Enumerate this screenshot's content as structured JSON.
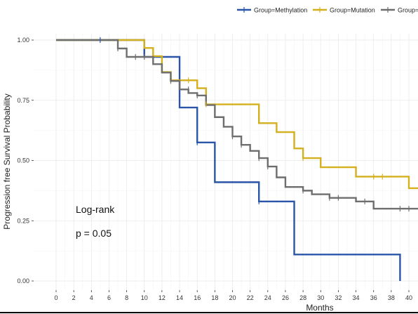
{
  "chart_data": {
    "type": "line",
    "subtype": "kaplan-meier-step",
    "xlabel": "Months",
    "ylabel": "Progression free Survival Probability",
    "x_ticks": [
      0,
      2,
      4,
      6,
      8,
      10,
      12,
      14,
      16,
      18,
      20,
      22,
      24,
      26,
      28,
      30,
      32,
      34,
      36,
      38,
      40
    ],
    "y_ticks": [
      "0.00",
      "0.25",
      "0.50",
      "0.75",
      "1.00"
    ],
    "y_tick_values": [
      0,
      0.25,
      0.5,
      0.75,
      1.0
    ],
    "xlim": [
      -6,
      41.5
    ],
    "ylim": [
      -0.02,
      1.05
    ],
    "grid": true,
    "legend_position": "top",
    "annotations": {
      "test": "Log-rank",
      "pvalue": "p = 0.05"
    },
    "series": [
      {
        "name": "Group=Methylation",
        "legend_label": "Group=Methylation",
        "color": "#2A55A8",
        "steps": [
          [
            0,
            1.0
          ],
          [
            10,
            0.93
          ],
          [
            14,
            0.72
          ],
          [
            16,
            0.575
          ],
          [
            18,
            0.41
          ],
          [
            23,
            0.33
          ],
          [
            27,
            0.11
          ],
          [
            39,
            0.0
          ]
        ],
        "end_x": 39,
        "censors": [
          [
            5,
            1.0
          ],
          [
            16,
            0.575
          ],
          [
            23,
            0.33
          ]
        ]
      },
      {
        "name": "Group=Mutation",
        "legend_label": "Group=Mutation",
        "color": "#D4AF1E",
        "steps": [
          [
            0,
            1.0
          ],
          [
            10,
            0.967
          ],
          [
            11,
            0.933
          ],
          [
            12,
            0.867
          ],
          [
            13,
            0.833
          ],
          [
            16,
            0.8
          ],
          [
            17,
            0.733
          ],
          [
            21,
            0.733
          ],
          [
            23,
            0.655
          ],
          [
            25,
            0.618
          ],
          [
            27,
            0.55
          ],
          [
            28,
            0.51
          ],
          [
            30,
            0.472
          ],
          [
            34,
            0.433
          ],
          [
            40,
            0.385
          ]
        ],
        "end_x": 41.5,
        "censors": [
          [
            15,
            0.833
          ],
          [
            17,
            0.733
          ],
          [
            28,
            0.51
          ],
          [
            36,
            0.433
          ],
          [
            37,
            0.433
          ]
        ]
      },
      {
        "name": "Group=",
        "legend_label": "Group=I",
        "color": "#6E6E6E",
        "steps": [
          [
            0,
            1.0
          ],
          [
            7,
            0.965
          ],
          [
            8,
            0.93
          ],
          [
            11,
            0.9
          ],
          [
            12,
            0.865
          ],
          [
            13,
            0.83
          ],
          [
            14,
            0.795
          ],
          [
            15,
            0.78
          ],
          [
            16,
            0.77
          ],
          [
            17,
            0.73
          ],
          [
            18,
            0.68
          ],
          [
            19,
            0.64
          ],
          [
            20,
            0.6
          ],
          [
            21,
            0.565
          ],
          [
            22,
            0.54
          ],
          [
            23,
            0.51
          ],
          [
            24,
            0.475
          ],
          [
            25,
            0.43
          ],
          [
            26,
            0.39
          ],
          [
            28,
            0.375
          ],
          [
            29,
            0.36
          ],
          [
            31,
            0.345
          ],
          [
            34,
            0.33
          ],
          [
            36,
            0.3
          ]
        ],
        "end_x": 41.5,
        "censors": [
          [
            7,
            0.965
          ],
          [
            9,
            0.93
          ],
          [
            10,
            0.93
          ],
          [
            13,
            0.83
          ],
          [
            15,
            0.795
          ],
          [
            16,
            0.77
          ],
          [
            20,
            0.6
          ],
          [
            21,
            0.565
          ],
          [
            23,
            0.51
          ],
          [
            24,
            0.475
          ],
          [
            28,
            0.375
          ],
          [
            31,
            0.345
          ],
          [
            32,
            0.345
          ],
          [
            35,
            0.33
          ],
          [
            39,
            0.3
          ],
          [
            40,
            0.3
          ]
        ]
      }
    ]
  }
}
